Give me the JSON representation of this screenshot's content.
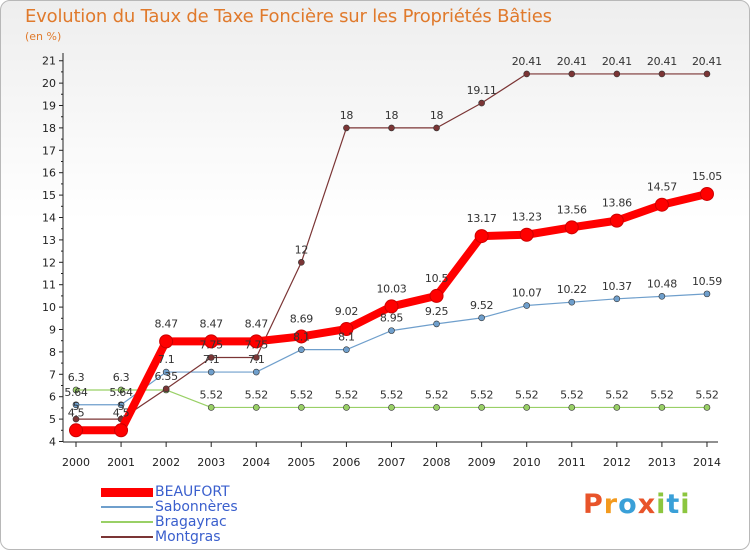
{
  "title": "Evolution du Taux de Taxe Foncière sur les Propriétés Bâties",
  "unit_label": "(en %)",
  "logo": {
    "text": "Proxiti",
    "letter_colors": [
      "#e8542a",
      "#f39a1e",
      "#3aa0d8",
      "#e8542a",
      "#8cc63f",
      "#3aa0d8",
      "#8cc63f"
    ]
  },
  "chart_data": {
    "type": "line",
    "title": "Evolution du Taux de Taxe Foncière sur les Propriétés Bâties",
    "ylabel": "(en %)",
    "xlabel": "",
    "x": [
      "2000",
      "2001",
      "2002",
      "2003",
      "2004",
      "2005",
      "2006",
      "2007",
      "2008",
      "2009",
      "2010",
      "2011",
      "2012",
      "2013",
      "2014"
    ],
    "ylim": [
      4,
      21
    ],
    "yticks": [
      "4",
      "5",
      "6",
      "7",
      "8",
      "9",
      "10",
      "11",
      "12",
      "13",
      "14",
      "15",
      "16",
      "17",
      "18",
      "19",
      "20",
      "21"
    ],
    "grid": false,
    "legend_position": "bottom-left",
    "series": [
      {
        "name": "BEAUFORT",
        "color": "#ff0000",
        "emphasis": true,
        "values": [
          4.5,
          4.5,
          8.47,
          8.47,
          8.47,
          8.69,
          9.02,
          10.03,
          10.5,
          13.17,
          13.23,
          13.56,
          13.86,
          14.57,
          15.05
        ],
        "labels": [
          "4.5",
          "4.5",
          "8.47",
          "8.47",
          "8.47",
          "8.69",
          "9.02",
          "10.03",
          "10.5",
          "13.17",
          "13.23",
          "13.56",
          "13.86",
          "14.57",
          "15.05"
        ]
      },
      {
        "name": "Sabonnères",
        "color": "#6f9fcc",
        "values": [
          5.64,
          5.64,
          7.1,
          7.1,
          7.1,
          8.1,
          8.1,
          8.95,
          9.25,
          9.52,
          10.07,
          10.22,
          10.37,
          10.48,
          10.59
        ],
        "labels": [
          "5.64",
          "5.64",
          "7.1",
          "7.1",
          "7.1",
          "8.1",
          "8.1",
          "8.95",
          "9.25",
          "9.52",
          "10.07",
          "10.22",
          "10.37",
          "10.48",
          "10.59"
        ]
      },
      {
        "name": "Bragayrac",
        "color": "#99d066",
        "values": [
          6.3,
          6.3,
          6.3,
          5.52,
          5.52,
          5.52,
          5.52,
          5.52,
          5.52,
          5.52,
          5.52,
          5.52,
          5.52,
          5.52,
          5.52
        ],
        "labels": [
          "6.3",
          "6.3",
          "",
          "5.52",
          "5.52",
          "5.52",
          "5.52",
          "5.52",
          "5.52",
          "5.52",
          "5.52",
          "5.52",
          "5.52",
          "5.52",
          "5.52"
        ]
      },
      {
        "name": "Montgras",
        "color": "#7b3535",
        "values": [
          5.0,
          5.0,
          6.35,
          7.75,
          7.75,
          12,
          18,
          18,
          18,
          19.11,
          20.41,
          20.41,
          20.41,
          20.41,
          20.41
        ],
        "labels": [
          "5",
          "5",
          "6.35",
          "7.75",
          "7.75",
          "12",
          "18",
          "18",
          "18",
          "19.11",
          "20.41",
          "20.41",
          "20.41",
          "20.41",
          "20.41"
        ]
      }
    ]
  }
}
